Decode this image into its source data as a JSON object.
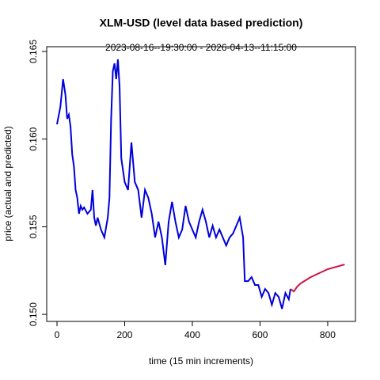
{
  "chart_data": {
    "type": "line",
    "title": "XLM-USD (level data based prediction)",
    "subtitle": "2023-08-16--19:30:00  -  2026-04-13--11:15:00",
    "x_label": "time (15 min increments)",
    "y_label": "price (actual and predicted)",
    "xlim": [
      -30.4,
      882
    ],
    "ylim": [
      0.1496,
      0.16527
    ],
    "xticks": [
      0,
      200,
      400,
      600,
      800
    ],
    "yticks": [
      {
        "value": 0.15,
        "label": "0.150"
      },
      0.155,
      {
        "value": 0.16,
        "label": "0.160"
      },
      0.165
    ],
    "series": [
      {
        "color": "#0000dd",
        "x": [
          0,
          10,
          18,
          25,
          30,
          35,
          40,
          45,
          50,
          55,
          60,
          65,
          70,
          75,
          80,
          90,
          100,
          105,
          110,
          115,
          120,
          130,
          140,
          150,
          155,
          160,
          165,
          170,
          175,
          180,
          185,
          190,
          200,
          210,
          220,
          230,
          240,
          250,
          260,
          270,
          280,
          290,
          300,
          310,
          320,
          330,
          340,
          350,
          360,
          370,
          380,
          390,
          400,
          410,
          420,
          430,
          440,
          450,
          460,
          470,
          480,
          490,
          500,
          510,
          520,
          530,
          540,
          550,
          555,
          565,
          575,
          585,
          595,
          605,
          615,
          625,
          635,
          645,
          655,
          665,
          675,
          685,
          690
        ],
        "values": [
          0.16084,
          0.16184,
          0.16342,
          0.16252,
          0.16116,
          0.16139,
          0.16071,
          0.15913,
          0.15845,
          0.1571,
          0.15664,
          0.15574,
          0.15619,
          0.15597,
          0.1561,
          0.15574,
          0.15597,
          0.1571,
          0.15552,
          0.15506,
          0.15552,
          0.15484,
          0.15439,
          0.15552,
          0.15664,
          0.16116,
          0.16387,
          0.16432,
          0.16342,
          0.16455,
          0.16297,
          0.1589,
          0.15755,
          0.1571,
          0.15981,
          0.15755,
          0.1571,
          0.15552,
          0.1571,
          0.15664,
          0.15574,
          0.15439,
          0.15529,
          0.15439,
          0.15281,
          0.15529,
          0.15642,
          0.15529,
          0.15439,
          0.15484,
          0.15619,
          0.15529,
          0.15484,
          0.15439,
          0.15529,
          0.15597,
          0.15529,
          0.15439,
          0.15506,
          0.15439,
          0.15484,
          0.15439,
          0.15393,
          0.15439,
          0.15461,
          0.15506,
          0.15552,
          0.15439,
          0.1519,
          0.1519,
          0.15213,
          0.15168,
          0.15168,
          0.151,
          0.15145,
          0.15122,
          0.15055,
          0.15122,
          0.151,
          0.15032,
          0.15122,
          0.15086,
          0.15145
        ]
      },
      {
        "color": "#cc1144",
        "x": [
          690,
          700,
          710,
          720,
          750,
          800,
          850
        ],
        "values": [
          0.15145,
          0.15131,
          0.15159,
          0.15177,
          0.15213,
          0.15258,
          0.15285
        ]
      }
    ]
  }
}
